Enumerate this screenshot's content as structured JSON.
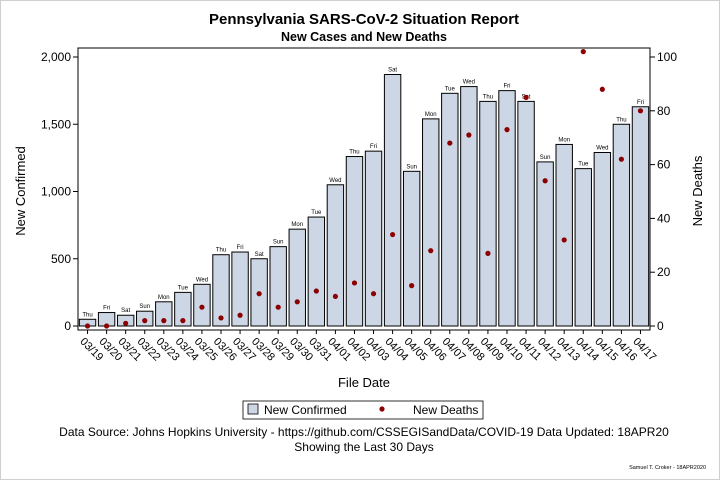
{
  "chart_data": {
    "type": "bar",
    "title": "Pennsylvania SARS-CoV-2 Situation Report",
    "subtitle": "New Cases and New Deaths",
    "xlabel": "File Date",
    "ylabel": "New Confirmed",
    "y2label": "New Deaths",
    "ylim": [
      0,
      2000
    ],
    "yticks": [
      "0",
      "500",
      "1,000",
      "1,500",
      "2,000"
    ],
    "yticks_values": [
      0,
      500,
      1000,
      1500,
      2000
    ],
    "y2lim": [
      0,
      100
    ],
    "y2ticks": [
      "0",
      "20",
      "40",
      "60",
      "80",
      "100"
    ],
    "y2ticks_values": [
      0,
      20,
      40,
      60,
      80,
      100
    ],
    "categories": [
      "03/19",
      "03/20",
      "03/21",
      "03/22",
      "03/23",
      "03/24",
      "03/25",
      "03/26",
      "03/27",
      "03/28",
      "03/29",
      "03/30",
      "03/31",
      "04/01",
      "04/02",
      "04/03",
      "04/04",
      "04/05",
      "04/06",
      "04/07",
      "04/08",
      "04/09",
      "04/10",
      "04/11",
      "04/12",
      "04/13",
      "04/14",
      "04/15",
      "04/16",
      "04/17"
    ],
    "weekdays": [
      "Thu",
      "Fri",
      "Sat",
      "Sun",
      "Mon",
      "Tue",
      "Wed",
      "Thu",
      "Fri",
      "Sat",
      "Sun",
      "Mon",
      "Tue",
      "Wed",
      "Thu",
      "Fri",
      "Sat",
      "Sun",
      "Mon",
      "Tue",
      "Wed",
      "Thu",
      "Fri",
      "Sat",
      "Sun",
      "Mon",
      "Tue",
      "Wed",
      "Thu",
      "Fri"
    ],
    "series": [
      {
        "name": "New Confirmed",
        "kind": "bar",
        "axis": "left",
        "color": "#cdd6e5",
        "values": [
          50,
          100,
          80,
          110,
          180,
          250,
          310,
          530,
          550,
          500,
          590,
          720,
          810,
          1050,
          1260,
          1300,
          1870,
          1150,
          1540,
          1730,
          1780,
          1670,
          1750,
          1670,
          1220,
          1350,
          1170,
          1290,
          1500,
          1630
        ]
      },
      {
        "name": "New Deaths",
        "kind": "scatter",
        "axis": "right",
        "color": "#8b0000",
        "values": [
          0,
          0,
          1,
          2,
          2,
          2,
          7,
          3,
          4,
          12,
          7,
          9,
          13,
          11,
          16,
          12,
          34,
          15,
          28,
          68,
          71,
          27,
          73,
          85,
          54,
          32,
          102,
          88,
          62,
          80
        ]
      }
    ],
    "legend_position": "bottom",
    "grid": false
  },
  "footer": {
    "source": "Data Source: Johns Hopkins University - https://github.com/CSSEGISandData/COVID-19 Data Updated: 18APR20",
    "range": "Showing the Last 30 Days",
    "author": "Samuel T. Croker - 18APR2020"
  },
  "colors": {
    "bar_fill": "#cdd6e5",
    "bar_stroke": "#000000",
    "marker": "#8b0000"
  }
}
